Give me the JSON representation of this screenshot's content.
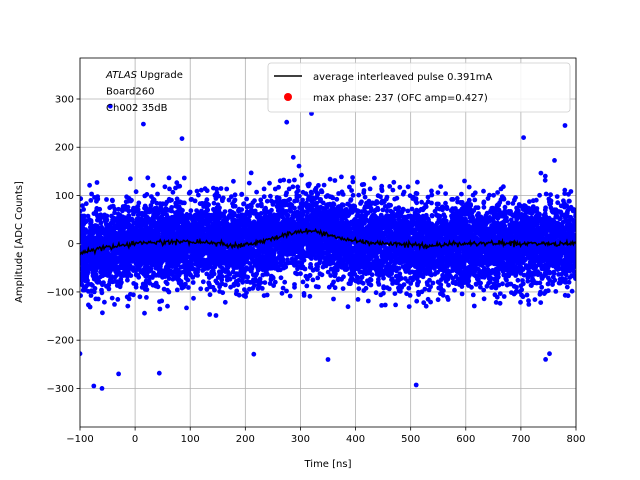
{
  "chart_data": {
    "type": "scatter",
    "xlabel": "Time [ns]",
    "ylabel": "Amplitude [ADC Counts]",
    "xlim": [
      -100,
      800
    ],
    "ylim": [
      -380,
      385
    ],
    "x_ticks": [
      -100,
      0,
      100,
      200,
      300,
      400,
      500,
      600,
      700,
      800
    ],
    "y_ticks": [
      -300,
      -200,
      -100,
      0,
      100,
      200,
      300
    ],
    "grid": true,
    "legend_position": "top-right",
    "annotation_lines": [
      {
        "italic": "ATLAS",
        "text": " Upgrade"
      },
      {
        "italic": "",
        "text": " Board260"
      },
      {
        "italic": "",
        "text": " Ch002 35dB"
      }
    ],
    "series": [
      {
        "name": "average interleaved pulse 0.391mA",
        "kind": "line",
        "color": "#000000",
        "x": [
          -100,
          -80,
          -60,
          -40,
          -20,
          0,
          20,
          40,
          60,
          80,
          100,
          120,
          140,
          160,
          180,
          200,
          220,
          240,
          260,
          280,
          300,
          320,
          340,
          360,
          380,
          400,
          420,
          440,
          460,
          480,
          500,
          520,
          540,
          560,
          580,
          600,
          620,
          640,
          660,
          680,
          700,
          720,
          740,
          760,
          780,
          800
        ],
        "y": [
          -20,
          -15,
          -10,
          -6,
          -3,
          0,
          2,
          3,
          4,
          5,
          4,
          3,
          2,
          0,
          -3,
          -2,
          2,
          8,
          14,
          20,
          24,
          26,
          22,
          16,
          10,
          6,
          4,
          2,
          0,
          -1,
          -2,
          -3,
          -3,
          -2,
          -1,
          0,
          0,
          1,
          1,
          0,
          0,
          1,
          1,
          0,
          0,
          1
        ]
      },
      {
        "name": "max phase: 237 (OFC amp=0.427)",
        "kind": "scatter",
        "color": "#0000ff",
        "legend_color": "#ff0000",
        "noise_sigma": 42,
        "point_count": 9000,
        "outliers": [
          {
            "x": -60,
            "y": -300
          },
          {
            "x": -75,
            "y": -295
          },
          {
            "x": -30,
            "y": -270
          },
          {
            "x": 510,
            "y": -293
          },
          {
            "x": 350,
            "y": -240
          },
          {
            "x": 752,
            "y": -228
          },
          {
            "x": -100,
            "y": -228
          },
          {
            "x": 320,
            "y": 270
          },
          {
            "x": 275,
            "y": 252
          },
          {
            "x": 15,
            "y": 248
          },
          {
            "x": 780,
            "y": 245
          },
          {
            "x": -45,
            "y": 285
          },
          {
            "x": 85,
            "y": 218
          },
          {
            "x": 705,
            "y": 220
          }
        ]
      }
    ]
  }
}
